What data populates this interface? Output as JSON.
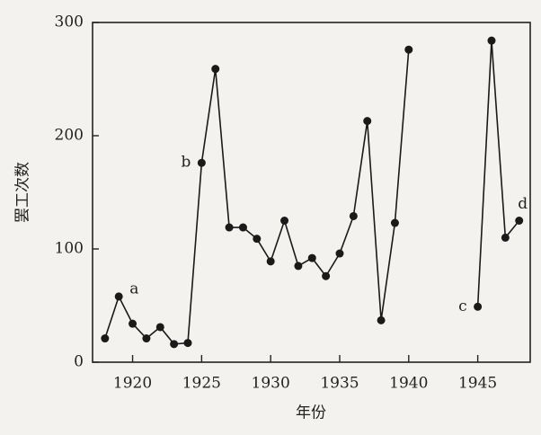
{
  "chart_data": {
    "type": "line",
    "x_label": "年份",
    "y_label": "罢工次数",
    "x": [
      1918,
      1919,
      1920,
      1921,
      1922,
      1923,
      1924,
      1925,
      1926,
      1927,
      1928,
      1929,
      1930,
      1931,
      1932,
      1933,
      1934,
      1935,
      1936,
      1937,
      1938,
      1939,
      1940,
      1941,
      1942,
      1943,
      1944,
      1945,
      1946,
      1947,
      1948
    ],
    "values": [
      21,
      58,
      34,
      21,
      31,
      16,
      17,
      176,
      259,
      119,
      119,
      109,
      89,
      125,
      85,
      92,
      76,
      96,
      129,
      213,
      37,
      123,
      276,
      null,
      null,
      null,
      null,
      49,
      284,
      110,
      125
    ],
    "color": "#1a1a1a",
    "xlim": [
      1917.1,
      1948.8
    ],
    "xticks": [
      1920,
      1925,
      1930,
      1935,
      1940,
      1945
    ],
    "ylim": [
      0,
      300
    ],
    "yticks": [
      0,
      100,
      200,
      300
    ],
    "annotations": [
      {
        "text": "a",
        "x": 1919,
        "anchor": "right"
      },
      {
        "text": "b",
        "x": 1925,
        "anchor": "left"
      },
      {
        "text": "c",
        "x": 1945,
        "anchor": "left"
      },
      {
        "text": "d",
        "x": 1948,
        "anchor": "above"
      }
    ]
  }
}
